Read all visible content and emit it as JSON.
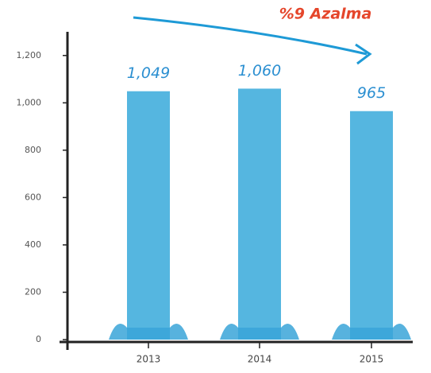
{
  "chart_data": {
    "type": "bar",
    "annotation": "%9 Azalma",
    "categories": [
      "2013",
      "2014",
      "2015"
    ],
    "values": [
      1049,
      1060,
      965
    ],
    "value_labels": [
      "1,049",
      "1,060",
      "965"
    ],
    "color": "#55b6e0",
    "ylim": [
      0,
      1300
    ],
    "yticks": [
      0,
      200,
      400,
      600,
      800,
      {
        "value": 1000,
        "label": "1,000"
      },
      {
        "value": 1200,
        "label": "1,200"
      }
    ]
  }
}
